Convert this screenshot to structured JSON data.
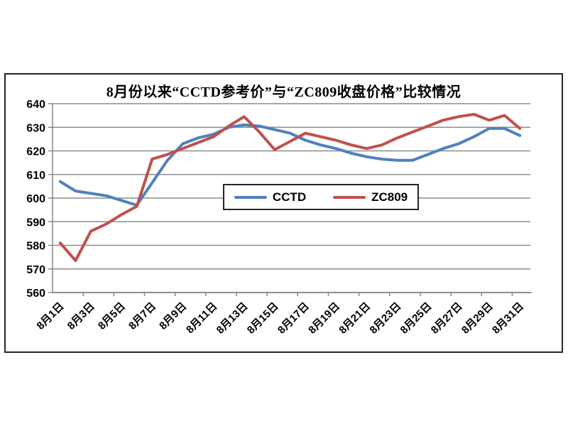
{
  "page": {
    "background": "#ffffff"
  },
  "chart_data": {
    "type": "line",
    "title": "8月份以来“CCTD参考价”与“ZC809收盘价格”比较情况",
    "categories": [
      "8月1日",
      "8月2日",
      "8月3日",
      "8月4日",
      "8月5日",
      "8月6日",
      "8月7日",
      "8月8日",
      "8月9日",
      "8月10日",
      "8月11日",
      "8月12日",
      "8月13日",
      "8月14日",
      "8月15日",
      "8月16日",
      "8月17日",
      "8月18日",
      "8月19日",
      "8月20日",
      "8月21日",
      "8月22日",
      "8月23日",
      "8月24日",
      "8月25日",
      "8月26日",
      "8月27日",
      "8月28日",
      "8月29日",
      "8月30日",
      "8月31日"
    ],
    "x_tick_labels_shown": [
      "8月1日",
      "8月3日",
      "8月5日",
      "8月7日",
      "8月9日",
      "8月11日",
      "8月13日",
      "8月15日",
      "8月17日",
      "8月19日",
      "8月21日",
      "8月23日",
      "8月25日",
      "8月27日",
      "8月29日",
      "8月31日"
    ],
    "series": [
      {
        "name": "CCTD",
        "color": "#4F81BD",
        "values": [
          607,
          603,
          602,
          601,
          599,
          597,
          606.5,
          616,
          623,
          625.5,
          627,
          630,
          631,
          630.5,
          629,
          627.5,
          624.5,
          622.5,
          621,
          619,
          617.5,
          616.5,
          616,
          616,
          618.5,
          621,
          623,
          626,
          629.5,
          629.5,
          626.5
        ]
      },
      {
        "name": "ZC809",
        "color": "#C0504D",
        "values": [
          581,
          573.5,
          586,
          589,
          593,
          596.5,
          616.5,
          618.5,
          621,
          623.5,
          626,
          630.5,
          634.5,
          628,
          620.5,
          624,
          627.5,
          626,
          624.5,
          622.5,
          621,
          622.5,
          625.5,
          628,
          630.5,
          633,
          634.5,
          635.5,
          633,
          635,
          629.5
        ]
      }
    ],
    "xlabel": "",
    "ylabel": "",
    "ylim": [
      560,
      640
    ],
    "ytick_step": 10,
    "grid": true,
    "grid_color": "#8c8c8c",
    "axis_color": "#7f7f7f",
    "text_color": "#000000",
    "legend_position": "center-inside"
  }
}
